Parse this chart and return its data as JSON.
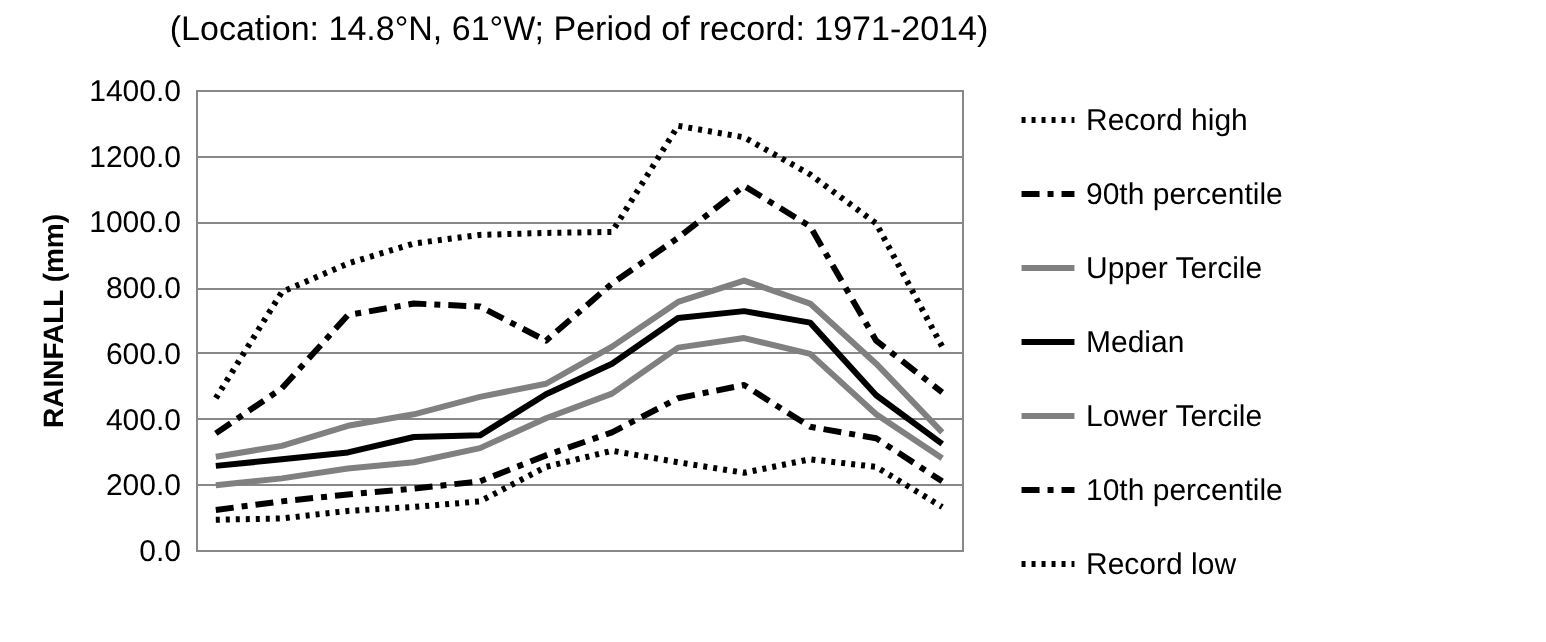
{
  "chart_data": {
    "type": "line",
    "title": "(Location: 14.8°N, 61°W; Period of record: 1971-2014)",
    "ylabel": "RAINFALL (mm)",
    "categories": [
      null,
      null,
      null,
      null,
      null,
      null,
      null,
      null,
      null,
      null,
      null,
      null
    ],
    "series": [
      {
        "name": "Record high",
        "color": "#000000",
        "line_style": "dotted",
        "values": [
          462,
          785,
          872,
          933,
          959,
          965,
          968,
          1291,
          1256,
          1143,
          994,
          619
        ]
      },
      {
        "name": "90th percentile",
        "color": "#000000",
        "line_style": "dashed",
        "values": [
          355,
          492,
          715,
          750,
          741,
          637,
          811,
          950,
          1108,
          985,
          637,
          480
        ]
      },
      {
        "name": "Upper Tercile",
        "color": "#808080",
        "line_style": "solid",
        "values": [
          284,
          317,
          378,
          413,
          466,
          506,
          619,
          755,
          820,
          750,
          567,
          358
        ]
      },
      {
        "name": "Median",
        "color": "#000000",
        "line_style": "solid",
        "values": [
          256,
          276,
          297,
          344,
          349,
          474,
          567,
          706,
          727,
          692,
          471,
          323
        ]
      },
      {
        "name": "Lower Tercile",
        "color": "#808080",
        "line_style": "solid",
        "values": [
          197,
          218,
          248,
          267,
          310,
          401,
          476,
          616,
          645,
          597,
          413,
          279
        ]
      },
      {
        "name": "10th percentile",
        "color": "#000000",
        "line_style": "dashed",
        "values": [
          122,
          148,
          169,
          187,
          209,
          288,
          358,
          462,
          502,
          375,
          340,
          209
        ]
      },
      {
        "name": "Record low",
        "color": "#000000",
        "line_style": "dotted",
        "values": [
          92,
          96,
          119,
          131,
          148,
          253,
          302,
          267,
          235,
          276,
          253,
          131
        ]
      }
    ],
    "ylim": [
      0,
      1400
    ],
    "yticks": [
      {
        "value": 0,
        "label": "0.0"
      },
      {
        "value": 200,
        "label": "200.0"
      },
      {
        "value": 400,
        "label": "400.0"
      },
      {
        "value": 600,
        "label": "600.0"
      },
      {
        "value": 800,
        "label": "800.0"
      },
      {
        "value": 1000,
        "label": "1000.0"
      },
      {
        "value": 1200,
        "label": "1200.0"
      },
      {
        "value": 1400,
        "label": "1400.0"
      }
    ],
    "grid": "y",
    "legend": "right",
    "tick_labels": "y",
    "marker": "none"
  }
}
